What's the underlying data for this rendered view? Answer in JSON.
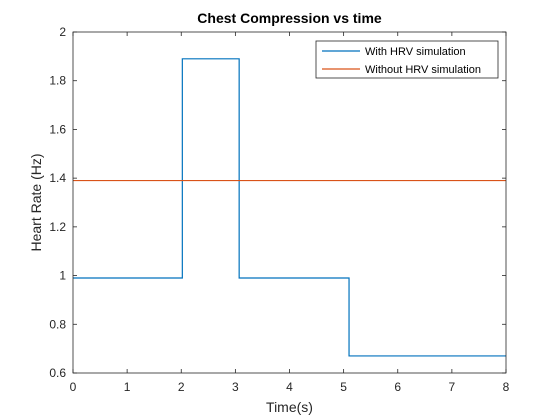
{
  "chart_data": {
    "type": "line",
    "title": "Chest Compression vs time",
    "xlabel": "Time(s)",
    "ylabel": "Heart Rate (Hz)",
    "xlim": [
      0,
      8
    ],
    "ylim": [
      0.6,
      2
    ],
    "xticks": [
      0,
      1,
      2,
      3,
      4,
      5,
      6,
      7,
      8
    ],
    "yticks": [
      0.6,
      0.8,
      1,
      1.2,
      1.4,
      1.6,
      1.8,
      2
    ],
    "xtick_labels": [
      "0",
      "1",
      "2",
      "3",
      "4",
      "5",
      "6",
      "7",
      "8"
    ],
    "ytick_labels": [
      "0.6",
      "0.8",
      "1",
      "1.2",
      "1.4",
      "1.6",
      "1.8",
      "2"
    ],
    "grid": false,
    "legend_position": "top-right",
    "series": [
      {
        "name": "With HRV simulation",
        "color": "#0072BD",
        "x": [
          0,
          2.02,
          2.02,
          3.07,
          3.07,
          5.1,
          5.1,
          8
        ],
        "y": [
          0.99,
          0.99,
          1.89,
          1.89,
          0.99,
          0.99,
          0.67,
          0.67
        ]
      },
      {
        "name": "Without HRV simulation",
        "color": "#D95319",
        "x": [
          0,
          8
        ],
        "y": [
          1.39,
          1.39
        ]
      }
    ]
  }
}
